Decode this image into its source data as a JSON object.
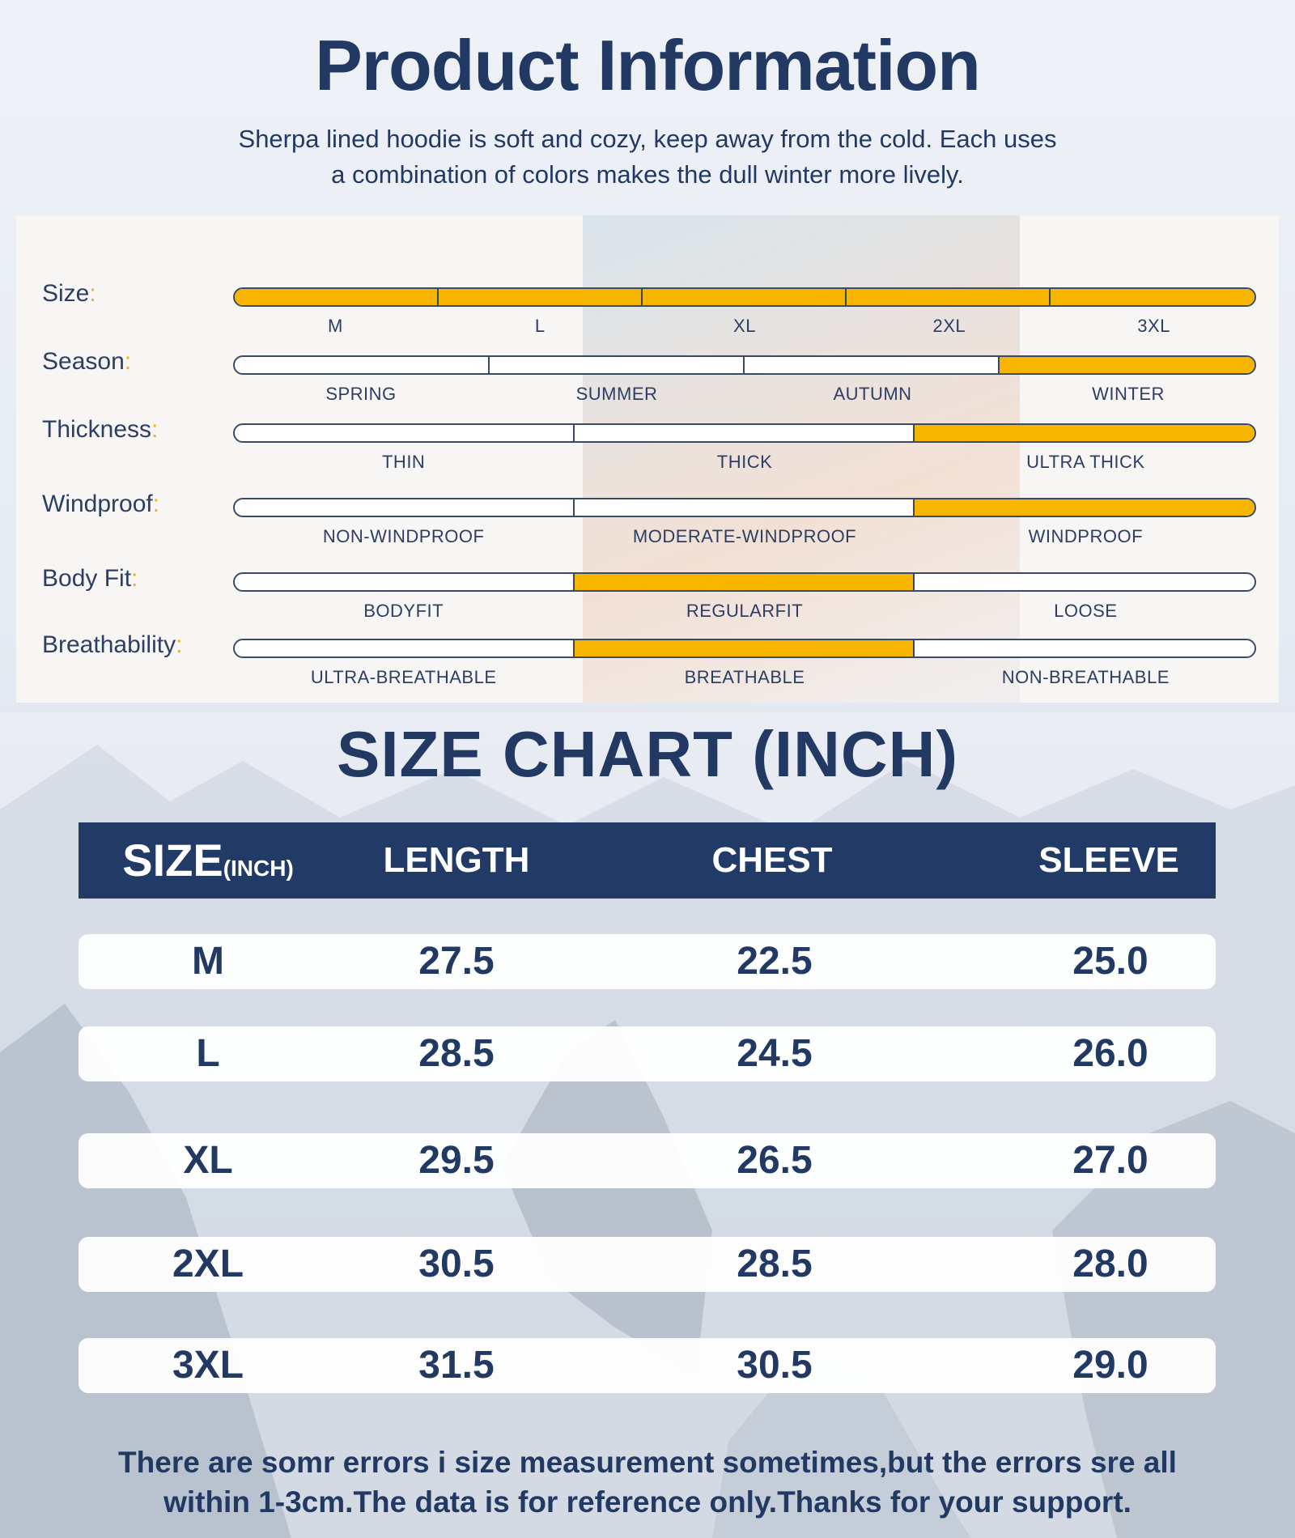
{
  "header": {
    "title": "Product Information",
    "subtitle_line1": "Sherpa lined hoodie is soft and cozy, keep away from the cold. Each uses",
    "subtitle_line2": "a combination of colors makes the dull winter more lively."
  },
  "colors": {
    "navy": "#213b66",
    "accent_yellow": "#f7b500",
    "bar_outline": "#3a4a66"
  },
  "attributes": [
    {
      "label": "Size",
      "segments": [
        {
          "label": "M",
          "selected": true
        },
        {
          "label": "L",
          "selected": true
        },
        {
          "label": "XL",
          "selected": true
        },
        {
          "label": "2XL",
          "selected": true
        },
        {
          "label": "3XL",
          "selected": true
        }
      ]
    },
    {
      "label": "Season",
      "segments": [
        {
          "label": "SPRING",
          "selected": false
        },
        {
          "label": "SUMMER",
          "selected": false
        },
        {
          "label": "AUTUMN",
          "selected": false
        },
        {
          "label": "WINTER",
          "selected": true
        }
      ]
    },
    {
      "label": "Thickness",
      "segments": [
        {
          "label": "THIN",
          "selected": false
        },
        {
          "label": "THICK",
          "selected": false
        },
        {
          "label": "ULTRA THICK",
          "selected": true
        }
      ]
    },
    {
      "label": "Windproof",
      "segments": [
        {
          "label": "NON-WINDPROOF",
          "selected": false
        },
        {
          "label": "MODERATE-WINDPROOF",
          "selected": false
        },
        {
          "label": "WINDPROOF",
          "selected": true
        }
      ]
    },
    {
      "label": "Body Fit",
      "segments": [
        {
          "label": "BODYFIT",
          "selected": false
        },
        {
          "label": "REGULARFIT",
          "selected": true
        },
        {
          "label": "LOOSE",
          "selected": false
        }
      ]
    },
    {
      "label": "Breathability",
      "segments": [
        {
          "label": "ULTRA-BREATHABLE",
          "selected": false
        },
        {
          "label": "BREATHABLE",
          "selected": true
        },
        {
          "label": "NON-BREATHABLE",
          "selected": false
        }
      ]
    }
  ],
  "size_chart": {
    "title": "SIZE CHART (INCH)",
    "headers": {
      "size": "SIZE",
      "size_unit": "(INCH)",
      "length": "LENGTH",
      "chest": "CHEST",
      "sleeve": "SLEEVE"
    },
    "rows": [
      {
        "size": "M",
        "length": "27.5",
        "chest": "22.5",
        "sleeve": "25.0"
      },
      {
        "size": "L",
        "length": "28.5",
        "chest": "24.5",
        "sleeve": "26.0"
      },
      {
        "size": "XL",
        "length": "29.5",
        "chest": "26.5",
        "sleeve": "27.0"
      },
      {
        "size": "2XL",
        "length": "30.5",
        "chest": "28.5",
        "sleeve": "28.0"
      },
      {
        "size": "3XL",
        "length": "31.5",
        "chest": "30.5",
        "sleeve": "29.0"
      }
    ]
  },
  "footnote": {
    "line1": "There are somr errors i size measurement sometimes,but the errors sre all",
    "line2": "within 1-3cm.The data is for reference only.Thanks for your support."
  }
}
